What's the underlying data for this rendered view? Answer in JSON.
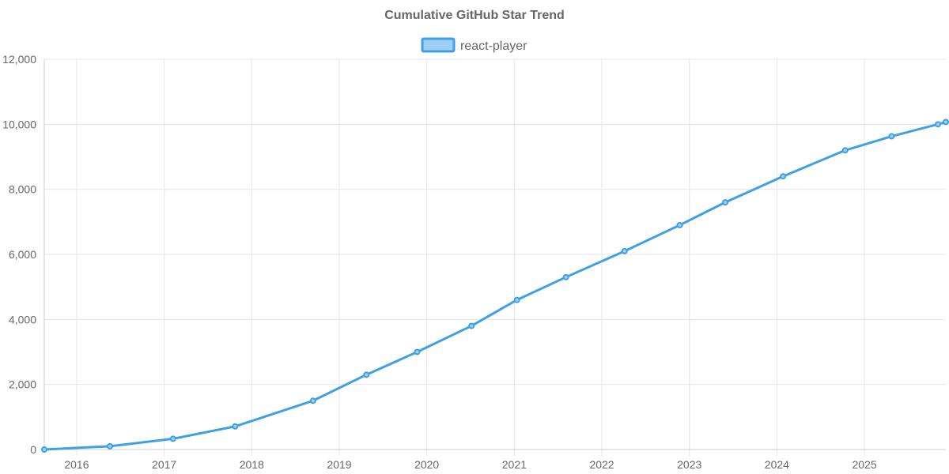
{
  "chart_data": {
    "type": "line",
    "title": "Cumulative GitHub Star Trend",
    "xlabel": "",
    "ylabel": "",
    "xlim": [
      2015.63,
      2025.93
    ],
    "ylim": [
      0,
      12000
    ],
    "x_ticks": [
      2016,
      2017,
      2018,
      2019,
      2020,
      2021,
      2022,
      2023,
      2024,
      2025
    ],
    "y_ticks": [
      0,
      2000,
      4000,
      6000,
      8000,
      10000,
      12000
    ],
    "x_tick_labels": [
      "2016",
      "2017",
      "2018",
      "2019",
      "2020",
      "2021",
      "2022",
      "2023",
      "2024",
      "2025"
    ],
    "y_tick_labels": [
      "0",
      "2,000",
      "4,000",
      "6,000",
      "8,000",
      "10,000",
      "12,000"
    ],
    "grid": true,
    "legend_position": "top-center",
    "series": [
      {
        "name": "react-player",
        "color": "#3fa0e3",
        "fill": "#9dd0f4",
        "points": [
          {
            "x": 2015.63,
            "y": 0
          },
          {
            "x": 2016.38,
            "y": 100
          },
          {
            "x": 2017.1,
            "y": 330
          },
          {
            "x": 2017.81,
            "y": 710
          },
          {
            "x": 2018.7,
            "y": 1500
          },
          {
            "x": 2019.31,
            "y": 2300
          },
          {
            "x": 2019.89,
            "y": 3000
          },
          {
            "x": 2020.51,
            "y": 3800
          },
          {
            "x": 2021.03,
            "y": 4600
          },
          {
            "x": 2021.59,
            "y": 5300
          },
          {
            "x": 2022.26,
            "y": 6100
          },
          {
            "x": 2022.89,
            "y": 6900
          },
          {
            "x": 2023.41,
            "y": 7600
          },
          {
            "x": 2024.07,
            "y": 8400
          },
          {
            "x": 2024.78,
            "y": 9200
          },
          {
            "x": 2025.31,
            "y": 9630
          },
          {
            "x": 2025.84,
            "y": 10000
          },
          {
            "x": 2025.93,
            "y": 10070
          }
        ]
      }
    ]
  }
}
